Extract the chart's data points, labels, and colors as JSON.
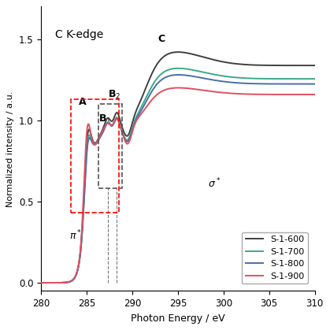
{
  "title": "C K-edge",
  "xlabel": "Photon Energy / eV",
  "ylabel": "Normalized intensity / a.u.",
  "xlim": [
    280,
    310
  ],
  "ylim": [
    -0.05,
    1.7
  ],
  "yticks": [
    0.0,
    0.5,
    1.0,
    1.5
  ],
  "xticks": [
    280,
    285,
    290,
    295,
    300,
    305,
    310
  ],
  "legend_labels": [
    "S-1-600",
    "S-1-700",
    "S-1-800",
    "S-1-900"
  ],
  "line_colors": [
    "#404040",
    "#3aaa8a",
    "#4a6fa8",
    "#e05060"
  ],
  "figsize": [
    4.19,
    4.19
  ],
  "dpi": 100
}
